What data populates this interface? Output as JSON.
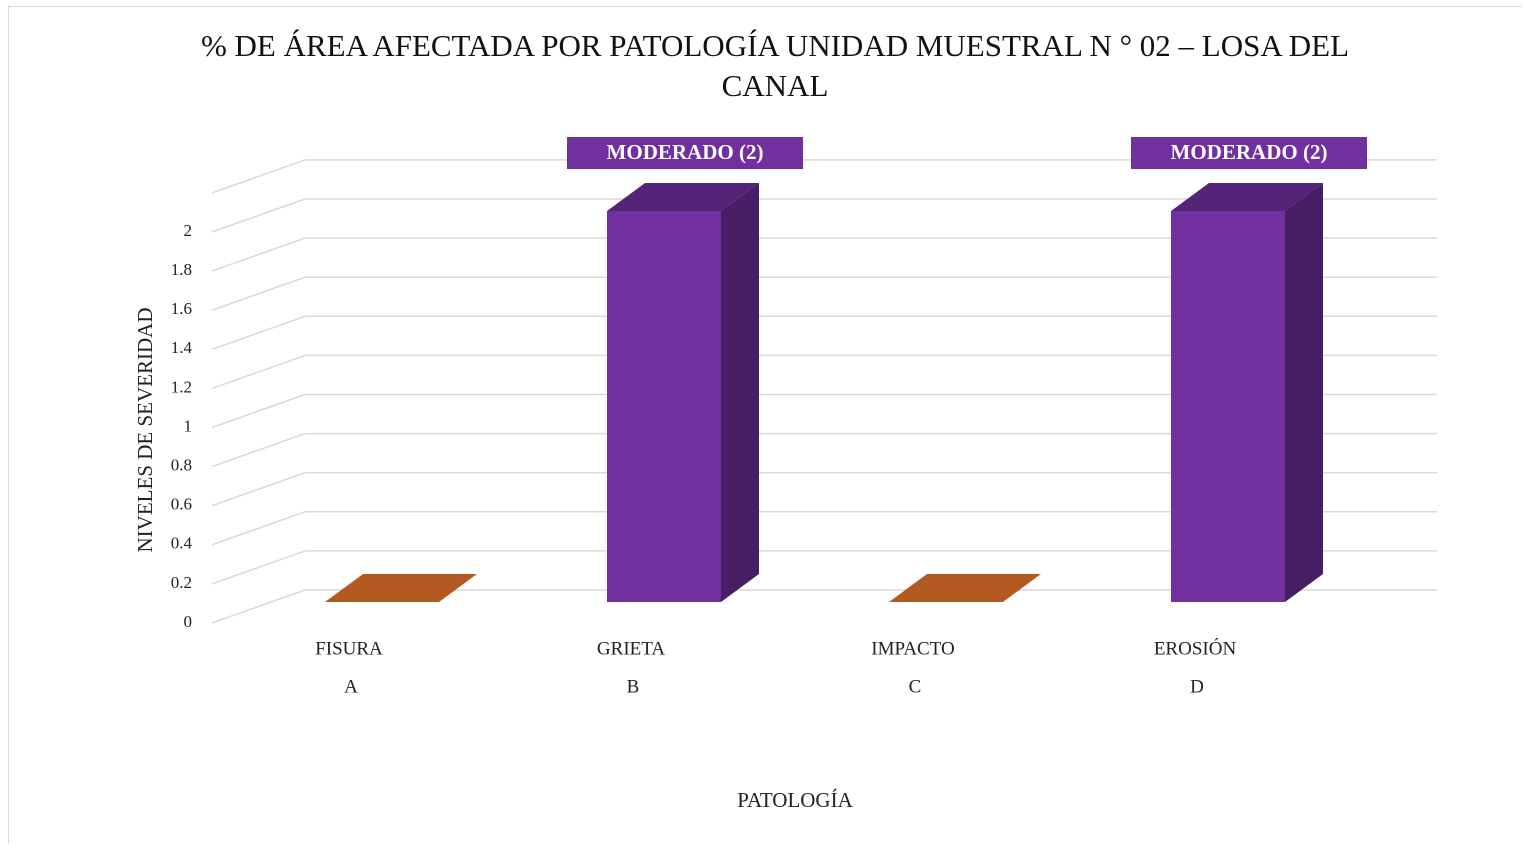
{
  "chart_data": {
    "type": "bar3d",
    "title": "% DE ÁREA AFECTADA POR PATOLOGÍA UNIDAD MUESTRAL N ° 02 – LOSA DEL CANAL",
    "x_label": "PATOLOGÍA",
    "y_label": "NIVELES DE SEVERIDAD",
    "categories": [
      "FISURA",
      "GRIETA",
      "IMPACTO",
      "EROSIÓN"
    ],
    "category_groups": [
      "A",
      "B",
      "C",
      "D"
    ],
    "values": [
      0,
      2,
      0,
      2
    ],
    "value_labels": [
      null,
      "MODERADO (2)",
      null,
      "MODERADO (2)"
    ],
    "colors": [
      "#b35a22",
      "#7030a0",
      "#b35a22",
      "#7030a0"
    ],
    "ylim": [
      0,
      2.2
    ],
    "yticks": [
      0,
      0.2,
      0.4,
      0.6,
      0.8,
      1,
      1.2,
      1.4,
      1.6,
      1.8,
      2
    ],
    "grid": true
  }
}
